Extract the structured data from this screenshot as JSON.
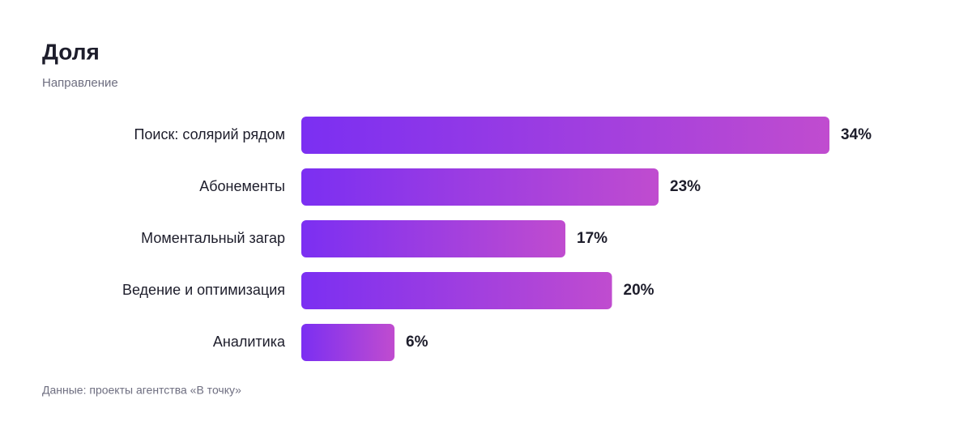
{
  "chart_data": {
    "type": "bar",
    "orientation": "horizontal",
    "title": "Доля",
    "subtitle": "Направление",
    "categories": [
      "Поиск: солярий рядом",
      "Абонементы",
      "Моментальный загар",
      "Ведение и оптимизация",
      "Аналитика"
    ],
    "values": [
      34,
      23,
      17,
      20,
      6
    ],
    "value_labels": [
      "34%",
      "23%",
      "17%",
      "20%",
      "6%"
    ],
    "gradient": [
      "#7b2ff2",
      "#c04ccf"
    ],
    "source": "Данные: проекты агентства «В точку»"
  }
}
